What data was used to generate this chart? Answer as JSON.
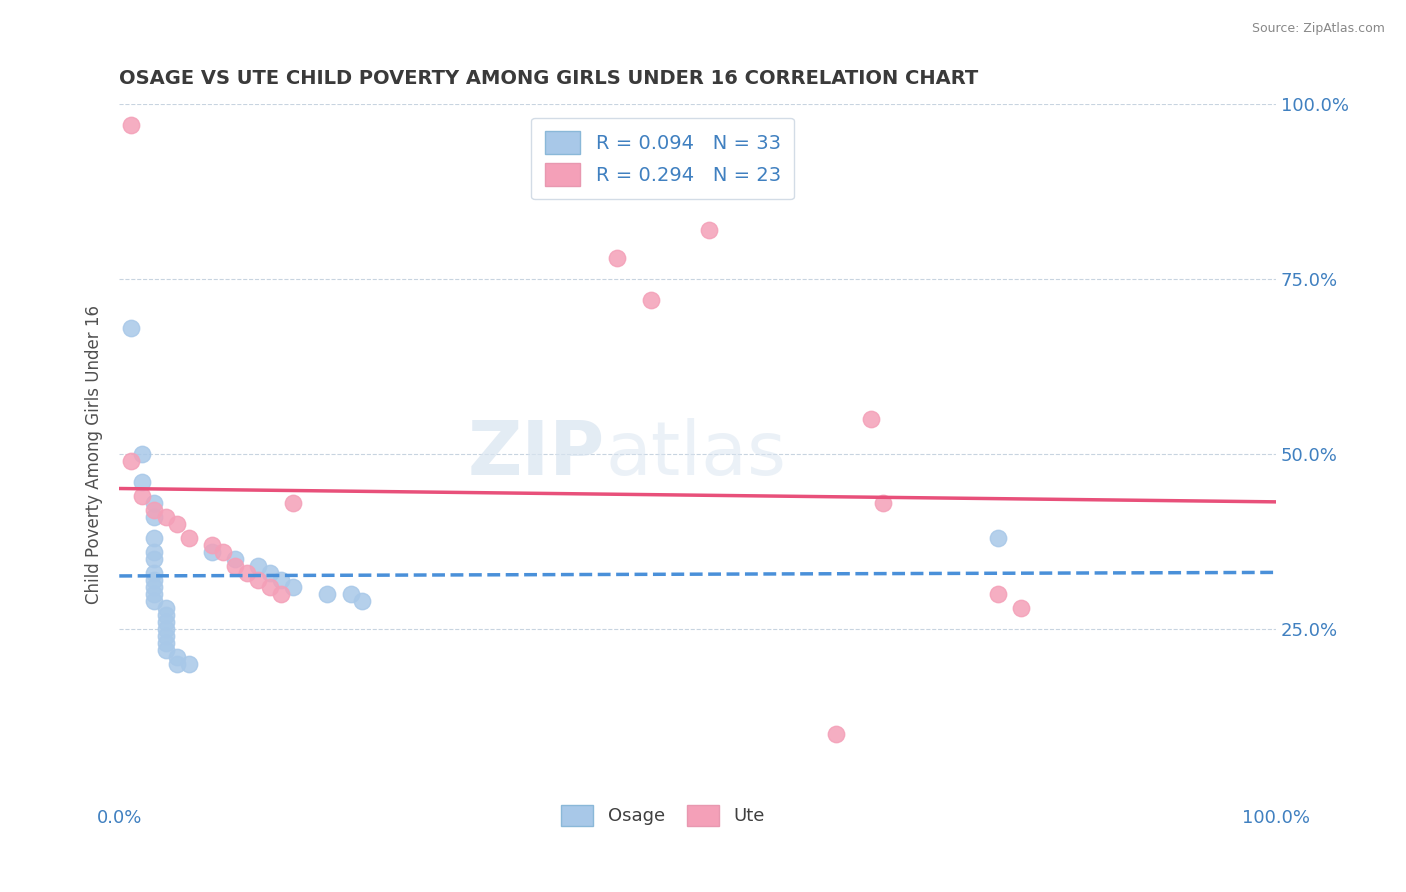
{
  "title": "OSAGE VS UTE CHILD POVERTY AMONG GIRLS UNDER 16 CORRELATION CHART",
  "source": "Source: ZipAtlas.com",
  "ylabel": "Child Poverty Among Girls Under 16",
  "watermark": "ZIPatlas",
  "osage_color": "#a8c8e8",
  "ute_color": "#f4a0b8",
  "osage_line_color": "#4a90d9",
  "ute_line_color": "#e8507a",
  "osage_R": 0.094,
  "osage_N": 33,
  "ute_R": 0.294,
  "ute_N": 23,
  "osage_points": [
    [
      0.01,
      0.68
    ],
    [
      0.02,
      0.5
    ],
    [
      0.02,
      0.46
    ],
    [
      0.03,
      0.43
    ],
    [
      0.03,
      0.41
    ],
    [
      0.03,
      0.38
    ],
    [
      0.03,
      0.36
    ],
    [
      0.03,
      0.35
    ],
    [
      0.03,
      0.33
    ],
    [
      0.03,
      0.32
    ],
    [
      0.03,
      0.31
    ],
    [
      0.03,
      0.3
    ],
    [
      0.03,
      0.29
    ],
    [
      0.04,
      0.28
    ],
    [
      0.04,
      0.27
    ],
    [
      0.04,
      0.26
    ],
    [
      0.04,
      0.25
    ],
    [
      0.04,
      0.24
    ],
    [
      0.04,
      0.23
    ],
    [
      0.04,
      0.22
    ],
    [
      0.05,
      0.21
    ],
    [
      0.05,
      0.2
    ],
    [
      0.06,
      0.2
    ],
    [
      0.08,
      0.36
    ],
    [
      0.1,
      0.35
    ],
    [
      0.12,
      0.34
    ],
    [
      0.13,
      0.33
    ],
    [
      0.14,
      0.32
    ],
    [
      0.15,
      0.31
    ],
    [
      0.18,
      0.3
    ],
    [
      0.2,
      0.3
    ],
    [
      0.21,
      0.29
    ],
    [
      0.76,
      0.38
    ]
  ],
  "ute_points": [
    [
      0.01,
      0.97
    ],
    [
      0.01,
      0.49
    ],
    [
      0.02,
      0.44
    ],
    [
      0.03,
      0.42
    ],
    [
      0.04,
      0.41
    ],
    [
      0.05,
      0.4
    ],
    [
      0.06,
      0.38
    ],
    [
      0.08,
      0.37
    ],
    [
      0.09,
      0.36
    ],
    [
      0.1,
      0.34
    ],
    [
      0.11,
      0.33
    ],
    [
      0.12,
      0.32
    ],
    [
      0.13,
      0.31
    ],
    [
      0.14,
      0.3
    ],
    [
      0.15,
      0.43
    ],
    [
      0.43,
      0.78
    ],
    [
      0.46,
      0.72
    ],
    [
      0.51,
      0.82
    ],
    [
      0.62,
      0.1
    ],
    [
      0.65,
      0.55
    ],
    [
      0.66,
      0.43
    ],
    [
      0.76,
      0.3
    ],
    [
      0.78,
      0.28
    ]
  ],
  "background_color": "#ffffff",
  "grid_color": "#c8d4e0",
  "title_color": "#3a3a3a",
  "axis_label_color": "#4080c0"
}
